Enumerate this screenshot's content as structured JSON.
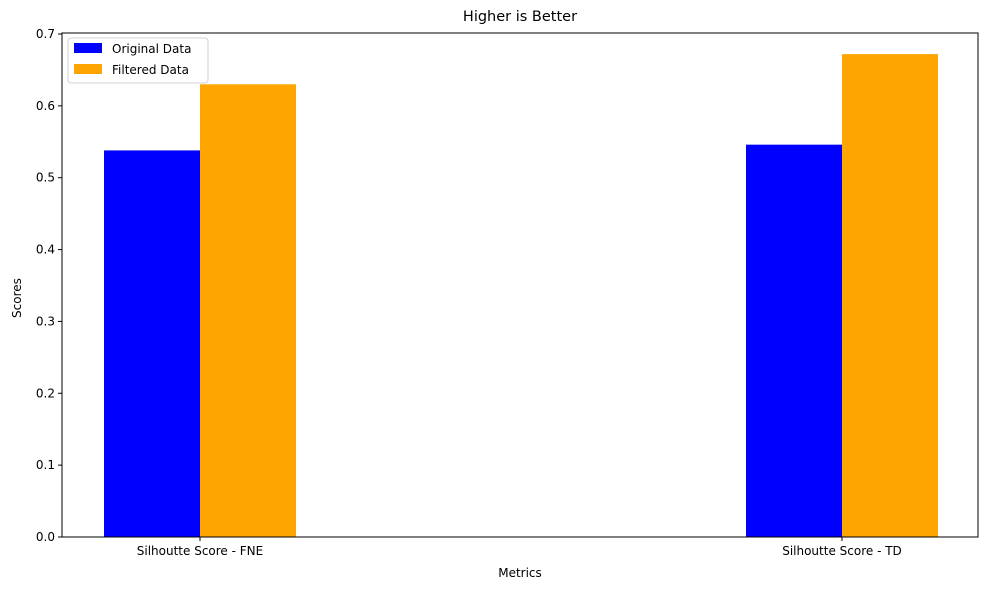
{
  "chart_data": {
    "type": "bar",
    "title": "Higher is Better",
    "xlabel": "Metrics",
    "ylabel": "Scores",
    "categories": [
      "Silhoutte Score - FNE",
      "Silhoutte Score - TD"
    ],
    "series": [
      {
        "name": "Original Data",
        "color": "#0000ff",
        "values": [
          0.538,
          0.546
        ]
      },
      {
        "name": "Filtered Data",
        "color": "#ffa500",
        "values": [
          0.63,
          0.672
        ]
      }
    ],
    "ylim": [
      0,
      0.7
    ],
    "yticks": [
      0.0,
      0.1,
      0.2,
      0.3,
      0.4,
      0.5,
      0.6,
      0.7
    ],
    "ytick_labels": [
      "0.0",
      "0.1",
      "0.2",
      "0.3",
      "0.4",
      "0.5",
      "0.6",
      "0.7"
    ],
    "grid": false,
    "legend": "top-left"
  }
}
